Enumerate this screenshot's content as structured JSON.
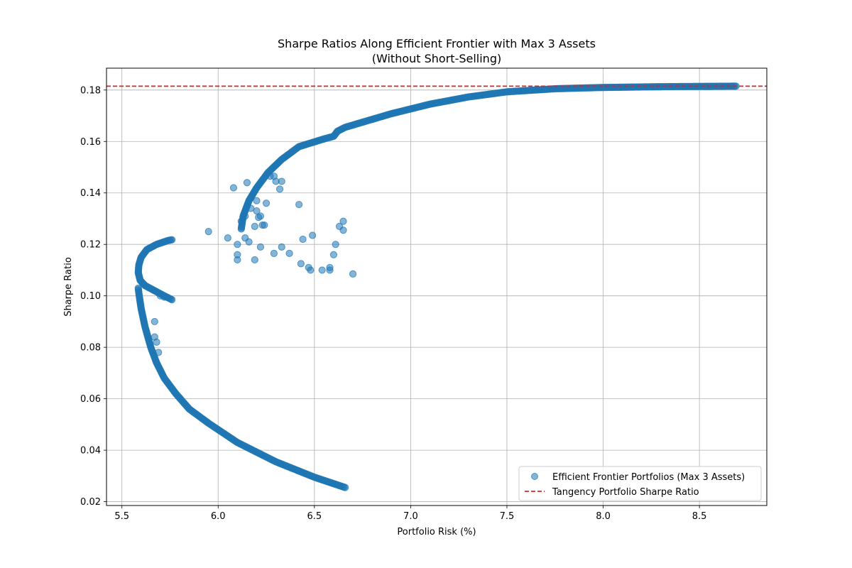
{
  "chart_data": {
    "type": "scatter",
    "title": "Sharpe Ratios Along Efficient Frontier with Max 3 Assets",
    "subtitle": "(Without Short-Selling)",
    "xlabel": "Portfolio Risk (%)",
    "ylabel": "Sharpe Ratio",
    "xlim": [
      5.42,
      8.85
    ],
    "ylim": [
      0.0185,
      0.1885
    ],
    "x_ticks": [
      5.5,
      6.0,
      6.5,
      7.0,
      7.5,
      8.0,
      8.5
    ],
    "x_tick_labels": [
      "5.5",
      "6.0",
      "6.5",
      "7.0",
      "7.5",
      "8.0",
      "8.5"
    ],
    "y_ticks": [
      0.02,
      0.04,
      0.06,
      0.08,
      0.1,
      0.12,
      0.14,
      0.16,
      0.18
    ],
    "y_tick_labels": [
      "0.02",
      "0.04",
      "0.06",
      "0.08",
      "0.10",
      "0.12",
      "0.14",
      "0.16",
      "0.18"
    ],
    "grid": true,
    "legend_position": "lower-right",
    "colors": {
      "series": "#1f77b4",
      "reference": "#d62728",
      "grid": "#b0b0b0"
    },
    "series": [
      {
        "name": "Efficient Frontier Portfolios (Max 3 Assets)",
        "type": "scatter",
        "frontier_curves": [
          [
            [
              6.66,
              0.0255
            ],
            [
              6.5,
              0.0295
            ],
            [
              6.3,
              0.0355
            ],
            [
              6.1,
              0.043
            ],
            [
              5.95,
              0.0505
            ],
            [
              5.85,
              0.056
            ],
            [
              5.78,
              0.062
            ],
            [
              5.72,
              0.068
            ],
            [
              5.68,
              0.074
            ],
            [
              5.65,
              0.08
            ],
            [
              5.62,
              0.088
            ],
            [
              5.6,
              0.095
            ],
            [
              5.59,
              0.1
            ],
            [
              5.585,
              0.103
            ]
          ],
          [
            [
              5.76,
              0.0985
            ],
            [
              5.72,
              0.1
            ],
            [
              5.67,
              0.102
            ],
            [
              5.62,
              0.104
            ],
            [
              5.595,
              0.106
            ],
            [
              5.585,
              0.109
            ],
            [
              5.588,
              0.112
            ],
            [
              5.6,
              0.115
            ],
            [
              5.63,
              0.118
            ],
            [
              5.68,
              0.12
            ],
            [
              5.74,
              0.1215
            ],
            [
              5.76,
              0.1218
            ]
          ],
          [
            [
              6.12,
              0.126
            ],
            [
              6.13,
              0.131
            ],
            [
              6.16,
              0.137
            ],
            [
              6.2,
              0.142
            ],
            [
              6.26,
              0.148
            ],
            [
              6.33,
              0.153
            ],
            [
              6.42,
              0.158
            ],
            [
              6.55,
              0.161
            ],
            [
              6.6,
              0.162
            ],
            [
              6.62,
              0.164
            ],
            [
              6.66,
              0.1655
            ],
            [
              6.75,
              0.1675
            ],
            [
              6.9,
              0.1708
            ],
            [
              7.1,
              0.1745
            ],
            [
              7.3,
              0.1773
            ],
            [
              7.5,
              0.1793
            ],
            [
              7.75,
              0.1805
            ],
            [
              8.0,
              0.181
            ],
            [
              8.3,
              0.1813
            ],
            [
              8.69,
              0.1815
            ]
          ]
        ],
        "scattered_points": [
          [
            5.95,
            0.125
          ],
          [
            6.05,
            0.1225
          ],
          [
            6.08,
            0.142
          ],
          [
            6.1,
            0.114
          ],
          [
            6.1,
            0.116
          ],
          [
            6.1,
            0.12
          ],
          [
            6.12,
            0.129
          ],
          [
            6.14,
            0.131
          ],
          [
            6.14,
            0.1225
          ],
          [
            6.15,
            0.144
          ],
          [
            6.16,
            0.121
          ],
          [
            6.17,
            0.134
          ],
          [
            6.19,
            0.114
          ],
          [
            6.19,
            0.127
          ],
          [
            6.2,
            0.137
          ],
          [
            6.2,
            0.133
          ],
          [
            6.21,
            0.1305
          ],
          [
            6.22,
            0.131
          ],
          [
            6.22,
            0.119
          ],
          [
            6.23,
            0.1275
          ],
          [
            6.24,
            0.1275
          ],
          [
            6.25,
            0.136
          ],
          [
            6.27,
            0.1465
          ],
          [
            6.29,
            0.1465
          ],
          [
            6.29,
            0.1165
          ],
          [
            6.3,
            0.1445
          ],
          [
            6.32,
            0.1415
          ],
          [
            6.33,
            0.1445
          ],
          [
            6.33,
            0.119
          ],
          [
            6.37,
            0.1165
          ],
          [
            6.42,
            0.1355
          ],
          [
            6.43,
            0.1125
          ],
          [
            6.44,
            0.122
          ],
          [
            6.47,
            0.111
          ],
          [
            6.49,
            0.1235
          ],
          [
            6.48,
            0.11
          ],
          [
            6.54,
            0.11
          ],
          [
            6.58,
            0.111
          ],
          [
            6.58,
            0.11
          ],
          [
            6.6,
            0.116
          ],
          [
            6.61,
            0.12
          ],
          [
            6.63,
            0.127
          ],
          [
            6.65,
            0.129
          ],
          [
            6.65,
            0.1255
          ],
          [
            6.7,
            0.1085
          ],
          [
            5.67,
            0.09
          ],
          [
            5.67,
            0.084
          ],
          [
            5.68,
            0.082
          ],
          [
            5.69,
            0.078
          ],
          [
            5.7,
            0.1
          ],
          [
            5.72,
            0.0995
          ]
        ]
      },
      {
        "name": "Tangency Portfolio Sharpe Ratio",
        "type": "hline",
        "y": 0.1815
      }
    ]
  }
}
